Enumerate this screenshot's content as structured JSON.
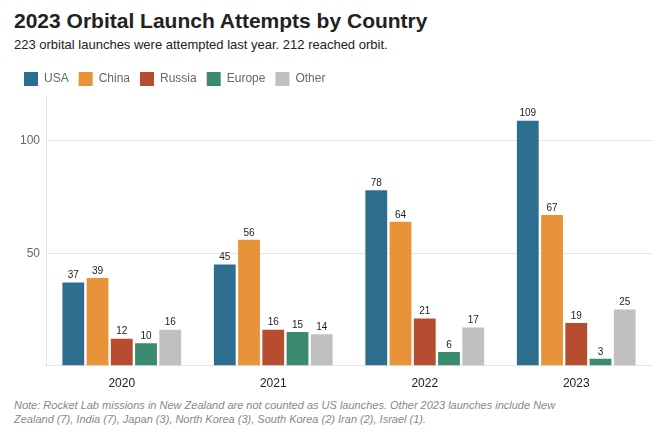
{
  "chart_data": {
    "type": "bar",
    "title": "2023 Orbital Launch Attempts by Country",
    "subtitle": "223 orbital launches were attempted last year. 212 reached orbit.",
    "note": "Note: Rocket Lab missions in New Zealand are not counted as US launches. Other 2023 launches include New\nZealand (7), India (7), Japan (3), North Korea (3), South Korea (2) Iran (2), Israel (1).",
    "categories": [
      "2020",
      "2021",
      "2022",
      "2023"
    ],
    "series": [
      {
        "name": "USA",
        "color": "#2d6e8e",
        "values": [
          37,
          45,
          78,
          109
        ]
      },
      {
        "name": "China",
        "color": "#e8923a",
        "values": [
          39,
          56,
          64,
          67
        ]
      },
      {
        "name": "Russia",
        "color": "#b84c30",
        "values": [
          12,
          16,
          21,
          19
        ]
      },
      {
        "name": "Europe",
        "color": "#3a8a6e",
        "values": [
          10,
          15,
          6,
          3
        ]
      },
      {
        "name": "Other",
        "color": "#c0c0c0",
        "values": [
          16,
          14,
          17,
          25
        ]
      }
    ],
    "ylim": [
      0,
      120
    ],
    "yticks": [
      50,
      100
    ],
    "grid": true,
    "legend": "top",
    "data_labels": true
  }
}
